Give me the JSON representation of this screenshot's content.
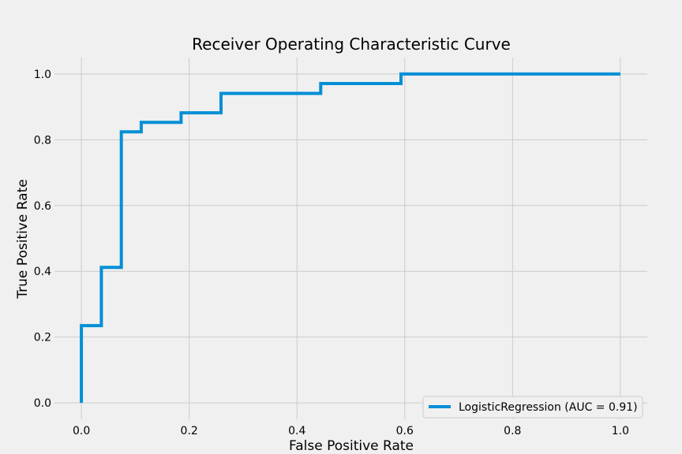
{
  "chart_data": {
    "type": "line",
    "title": "Receiver Operating Characteristic Curve",
    "xlabel": "False Positive Rate",
    "ylabel": "True Positive Rate",
    "xlim": [
      -0.05,
      1.05
    ],
    "ylim": [
      -0.05,
      1.05
    ],
    "xticks": [
      "0.0",
      "0.2",
      "0.4",
      "0.6",
      "0.8",
      "1.0"
    ],
    "yticks": [
      "0.0",
      "0.2",
      "0.4",
      "0.6",
      "0.8",
      "1.0"
    ],
    "grid": true,
    "legend_position": "lower-right",
    "series": [
      {
        "name": "LogisticRegression (AUC = 0.91)",
        "color": "#008fd5",
        "drawstyle": "steps",
        "x": [
          0.0,
          0.0,
          0.037,
          0.037,
          0.074,
          0.074,
          0.111,
          0.111,
          0.185,
          0.185,
          0.259,
          0.259,
          0.444,
          0.444,
          0.593,
          0.593,
          1.0
        ],
        "y": [
          0.0,
          0.235,
          0.235,
          0.412,
          0.412,
          0.824,
          0.824,
          0.853,
          0.853,
          0.882,
          0.882,
          0.941,
          0.941,
          0.971,
          0.971,
          1.0,
          1.0
        ]
      }
    ]
  }
}
